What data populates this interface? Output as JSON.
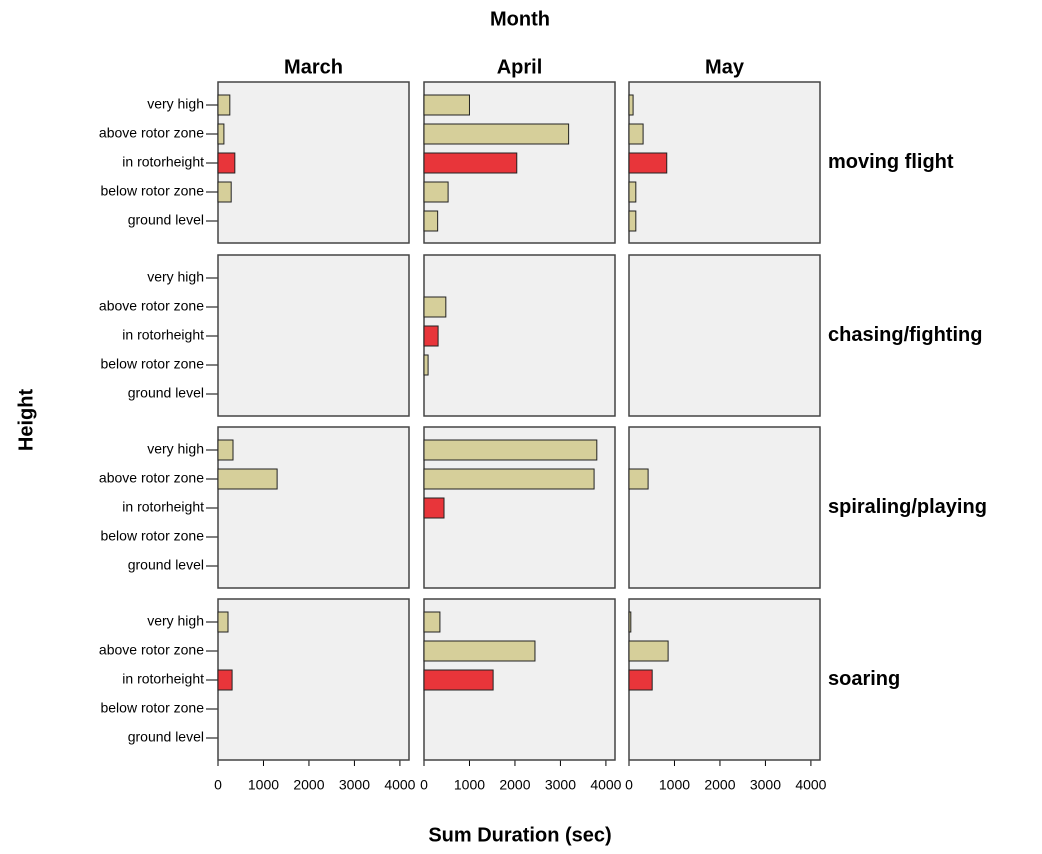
{
  "chart_data": {
    "type": "bar",
    "orientation": "horizontal",
    "title": "Month",
    "xlabel": "Sum Duration (sec)",
    "ylabel": "Height",
    "columns": [
      "March",
      "April",
      "May"
    ],
    "rows": [
      "moving flight",
      "chasing/fighting",
      "spiraling/playing",
      "soaring"
    ],
    "categories": [
      "very high",
      "above rotor zone",
      "in rotorheight",
      "below rotor zone",
      "ground level"
    ],
    "category_colors": [
      "#d6cf9a",
      "#d6cf9a",
      "#e8353a",
      "#d6cf9a",
      "#d6cf9a"
    ],
    "xlim": [
      0,
      4200
    ],
    "xticks": [
      0,
      1000,
      2000,
      3000,
      4000
    ],
    "panels": [
      [
        [
          260,
          130,
          370,
          290,
          null
        ],
        [
          1000,
          3180,
          2040,
          530,
          300
        ],
        [
          90,
          310,
          830,
          150,
          150
        ]
      ],
      [
        [
          null,
          null,
          null,
          null,
          null
        ],
        [
          null,
          480,
          310,
          90,
          null
        ],
        [
          null,
          null,
          null,
          null,
          null
        ]
      ],
      [
        [
          330,
          1300,
          null,
          null,
          null
        ],
        [
          3800,
          3740,
          440,
          null,
          null
        ],
        [
          null,
          420,
          null,
          null,
          null
        ]
      ],
      [
        [
          220,
          null,
          310,
          null,
          null
        ],
        [
          350,
          2440,
          1520,
          null,
          null
        ],
        [
          40,
          860,
          510,
          null,
          null
        ]
      ]
    ]
  }
}
